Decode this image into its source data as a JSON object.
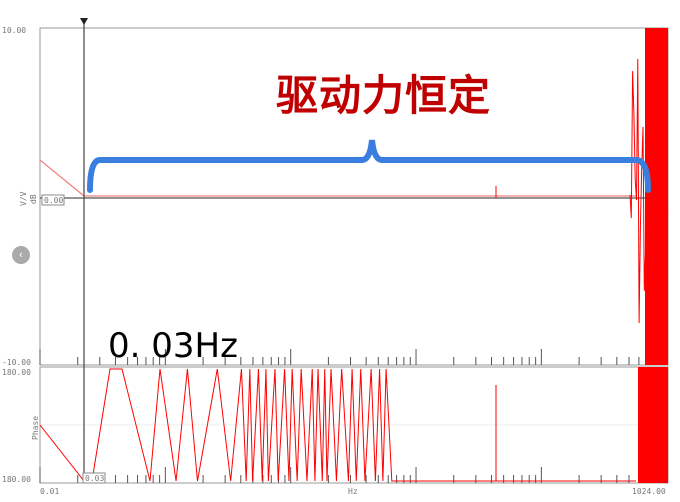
{
  "chart_data": [
    {
      "type": "line",
      "title": "",
      "xlabel": "Hz",
      "ylabel": "V/V dB",
      "xscale": "log",
      "xlim": [
        0.01,
        1024.0
      ],
      "ylim": [
        -10.0,
        10.0
      ],
      "y_tick_labels": [
        "10.00",
        "-10.00"
      ],
      "cursor": {
        "x": 0.03,
        "y_label": "0.00"
      },
      "series": [
        {
          "color": "#ff0000",
          "description_points": [
            [
              0.01,
              2.2
            ],
            [
              0.03,
              0.0
            ],
            [
              500,
              0.0
            ],
            [
              700,
              10
            ],
            [
              1024,
              -10
            ]
          ]
        }
      ]
    },
    {
      "type": "line",
      "title": "",
      "xlabel": "Hz",
      "ylabel": "Phase",
      "xscale": "log",
      "xlim": [
        0.01,
        1024.0
      ],
      "ylim": [
        -180,
        180
      ],
      "y_tick_labels": [
        "180.00",
        "180.00"
      ],
      "x_tick_labels": [
        "0.01",
        "Hz",
        "1024.00"
      ],
      "cursor": {
        "x": 0.03,
        "x_label": "0.03"
      },
      "series": [
        {
          "color": "#ff0000"
        }
      ]
    }
  ],
  "annotations": {
    "title_cn": "驱动力恒定",
    "freq_label": "0. 03Hz",
    "bracket_color": "#3a7fe0",
    "title_color": "#c00000"
  },
  "labels": {
    "y_top": "10.00",
    "y_bottom": "-10.00",
    "y_unit": "V/V",
    "y_unit2": "dB",
    "cursor_mag": "0.00",
    "phase_top": "180.00",
    "phase_bottom": "180.00",
    "phase_label": "Phase",
    "cursor_freq": "0.03",
    "x_left": "0.01",
    "x_mid": "Hz",
    "x_right": "1024.00",
    "nav_icon": "chevron-left-icon"
  }
}
